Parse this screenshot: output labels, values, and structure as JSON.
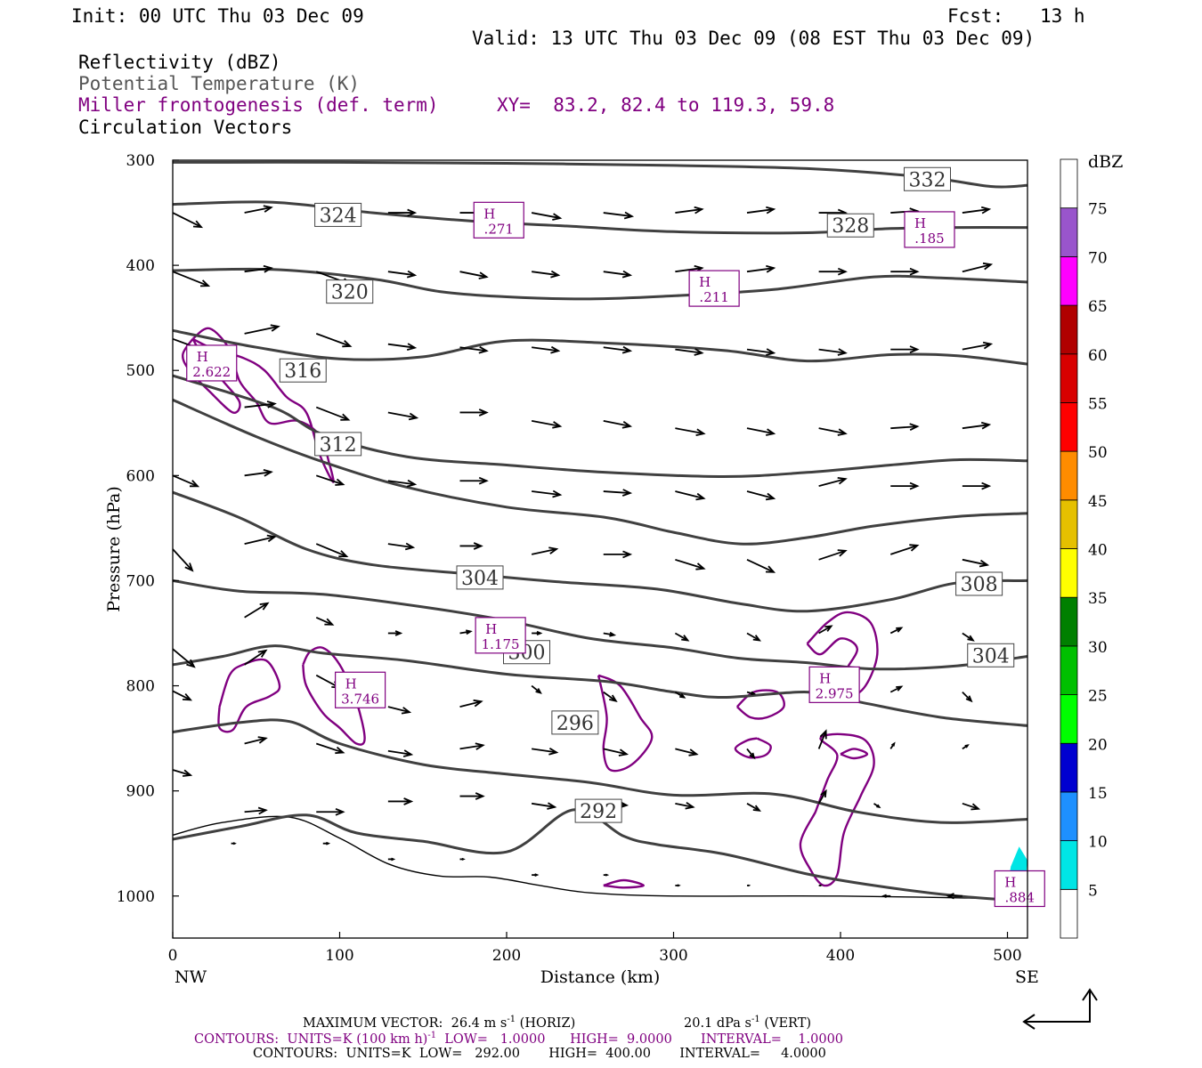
{
  "header": {
    "init": "Init: 00 UTC Thu 03 Dec 09",
    "fcst_label": "Fcst:",
    "fcst_value": "13 h",
    "valid": "Valid: 13 UTC Thu 03 Dec 09 (08 EST Thu 03 Dec 09)"
  },
  "fields": {
    "reflectivity": "Reflectivity (dBZ)",
    "theta": "Potential Temperature (K)",
    "miller": "Miller frontogenesis (def. term)",
    "xy": "XY=  83.2, 82.4 to 119.3, 59.8",
    "vectors": "Circulation Vectors"
  },
  "footer": {
    "max_vector": "MAXIMUM VECTOR:  26.4 m s",
    "max_vector_exp": "-1",
    "max_vector_tail": " (HORIZ)",
    "vert": "20.1 dPa s",
    "vert_exp": "-1",
    "vert_tail": " (VERT)",
    "contours1_a": "CONTOURS:  UNITS=K (100 km h)",
    "contours1_exp": "-1",
    "contours1_b": "  LOW=   1.0000      HIGH=  9.0000       INTERVAL=    1.0000",
    "contours2": "CONTOURS:  UNITS=K  LOW=   292.00       HIGH=  400.00       INTERVAL=     4.0000"
  },
  "colors": {
    "theta_contour": "#404040",
    "frontogenesis": "#800080",
    "vector": "#000000",
    "axis": "#000000"
  },
  "colorbar": {
    "title": "dBZ",
    "labels": [
      "5",
      "10",
      "15",
      "20",
      "25",
      "30",
      "35",
      "40",
      "45",
      "50",
      "55",
      "60",
      "65",
      "70",
      "75"
    ],
    "colors": [
      "#ffffff",
      "#00e5e5",
      "#1e90ff",
      "#0000d0",
      "#00ff00",
      "#00c000",
      "#008000",
      "#ffff00",
      "#e5c000",
      "#ff8c00",
      "#ff0000",
      "#d80000",
      "#b00000",
      "#ff00ff",
      "#9955cc",
      "#ffffff"
    ]
  },
  "chart_data": {
    "type": "cross-section",
    "xlabel": "Distance (km)",
    "ylabel": "Pressure (hPa)",
    "xlim": [
      0,
      512
    ],
    "ylim": [
      1040,
      300
    ],
    "x_ticks": [
      0,
      100,
      200,
      300,
      400,
      500
    ],
    "y_ticks": [
      300,
      400,
      500,
      600,
      700,
      800,
      900,
      1000
    ],
    "left_end_label": "NW",
    "right_end_label": "SE",
    "grid": false,
    "theta_contours": [
      {
        "label": "332",
        "label_at": [
          452,
          318
        ],
        "points": [
          [
            0,
            302
          ],
          [
            100,
            302
          ],
          [
            200,
            303
          ],
          [
            300,
            305
          ],
          [
            380,
            308
          ],
          [
            450,
            316
          ],
          [
            490,
            325
          ],
          [
            512,
            324
          ]
        ]
      },
      {
        "label": "328",
        "label_at": [
          406,
          362
        ],
        "points": [
          [
            0,
            342
          ],
          [
            60,
            340
          ],
          [
            120,
            350
          ],
          [
            180,
            358
          ],
          [
            240,
            363
          ],
          [
            300,
            368
          ],
          [
            380,
            369
          ],
          [
            430,
            365
          ],
          [
            470,
            364
          ],
          [
            512,
            364
          ]
        ]
      },
      {
        "label": "324",
        "label_at": [
          99,
          352
        ],
        "points": [
          [
            0,
            405
          ],
          [
            60,
            404
          ],
          [
            120,
            413
          ],
          [
            160,
            425
          ],
          [
            200,
            430
          ],
          [
            250,
            432
          ],
          [
            300,
            429
          ],
          [
            360,
            423
          ],
          [
            420,
            411
          ],
          [
            460,
            412
          ],
          [
            512,
            416
          ]
        ]
      },
      {
        "label": "320",
        "label_at": [
          106,
          425
        ],
        "points": [
          [
            0,
            462
          ],
          [
            50,
            478
          ],
          [
            100,
            489
          ],
          [
            150,
            487
          ],
          [
            200,
            472
          ],
          [
            260,
            474
          ],
          [
            330,
            481
          ],
          [
            380,
            491
          ],
          [
            430,
            485
          ],
          [
            470,
            486
          ],
          [
            512,
            494
          ]
        ]
      },
      {
        "label": "316",
        "label_at": [
          78,
          500
        ],
        "points": [
          [
            0,
            505
          ],
          [
            60,
            535
          ],
          [
            90,
            561
          ],
          [
            140,
            582
          ],
          [
            200,
            590
          ],
          [
            260,
            597
          ],
          [
            330,
            601
          ],
          [
            380,
            597
          ],
          [
            430,
            590
          ],
          [
            470,
            585
          ],
          [
            512,
            586
          ]
        ]
      },
      {
        "label": "312",
        "label_at": [
          99,
          570
        ],
        "points": [
          [
            0,
            528
          ],
          [
            50,
            563
          ],
          [
            90,
            587
          ],
          [
            140,
            611
          ],
          [
            200,
            630
          ],
          [
            260,
            640
          ],
          [
            300,
            654
          ],
          [
            340,
            665
          ],
          [
            380,
            659
          ],
          [
            420,
            648
          ],
          [
            470,
            639
          ],
          [
            512,
            636
          ]
        ]
      },
      {
        "label": "304",
        "label_at": [
          184,
          697
        ],
        "points": [
          [
            0,
            616
          ],
          [
            40,
            640
          ],
          [
            80,
            670
          ],
          [
            120,
            685
          ],
          [
            180,
            694
          ],
          [
            230,
            701
          ],
          [
            290,
            708
          ],
          [
            340,
            722
          ],
          [
            380,
            729
          ],
          [
            430,
            718
          ],
          [
            470,
            702
          ],
          [
            512,
            700
          ]
        ]
      },
      {
        "label": "308",
        "label_at": [
          483,
          703
        ],
        "points": [
          [
            0,
            700
          ],
          [
            40,
            710
          ],
          [
            90,
            713
          ],
          [
            150,
            725
          ],
          [
            200,
            738
          ],
          [
            250,
            755
          ],
          [
            300,
            764
          ],
          [
            340,
            774
          ],
          [
            380,
            778
          ],
          [
            420,
            784
          ],
          [
            470,
            781
          ],
          [
            512,
            772
          ]
        ]
      },
      {
        "label": "300",
        "label_at": [
          212,
          768
        ],
        "points": [
          [
            0,
            780
          ],
          [
            30,
            772
          ],
          [
            60,
            762
          ],
          [
            90,
            769
          ],
          [
            140,
            776
          ],
          [
            200,
            789
          ],
          [
            260,
            796
          ],
          [
            300,
            806
          ],
          [
            330,
            811
          ],
          [
            380,
            806
          ],
          [
            410,
            815
          ],
          [
            460,
            830
          ],
          [
            512,
            838
          ]
        ]
      },
      {
        "label": "304",
        "label_at": [
          490,
          771
        ],
        "points": []
      },
      {
        "label": "296",
        "label_at": [
          241,
          835
        ],
        "points": [
          [
            0,
            844
          ],
          [
            40,
            835
          ],
          [
            70,
            834
          ],
          [
            100,
            855
          ],
          [
            150,
            875
          ],
          [
            200,
            884
          ],
          [
            250,
            892
          ],
          [
            300,
            904
          ],
          [
            360,
            903
          ],
          [
            410,
            920
          ],
          [
            460,
            930
          ],
          [
            512,
            927
          ]
        ]
      },
      {
        "label": "292",
        "label_at": [
          255,
          919
        ],
        "points": [
          [
            0,
            946
          ],
          [
            40,
            934
          ],
          [
            80,
            923
          ],
          [
            110,
            940
          ],
          [
            150,
            948
          ],
          [
            200,
            958
          ],
          [
            240,
            918
          ],
          [
            270,
            943
          ],
          [
            290,
            951
          ],
          [
            330,
            960
          ],
          [
            380,
            979
          ],
          [
            420,
            990
          ],
          [
            470,
            1000
          ],
          [
            512,
            1005
          ]
        ]
      }
    ]
  }
}
